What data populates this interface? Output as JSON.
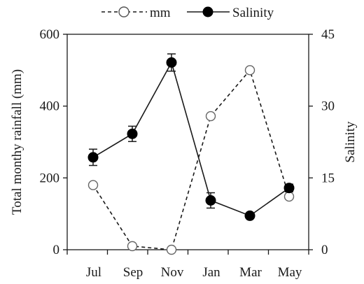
{
  "chart_data": {
    "type": "line",
    "categories": [
      "Jul",
      "Sep",
      "Nov",
      "Jan",
      "Mar",
      "May"
    ],
    "legend_position": "top",
    "grid": false,
    "left_axis": {
      "label": "Total monthy rainfall (mm)",
      "ylim": [
        0,
        600
      ],
      "ticks": [
        "0",
        "200",
        "400",
        "600"
      ]
    },
    "right_axis": {
      "label": "Salinity",
      "ylim": [
        0,
        45
      ],
      "ticks": [
        "0",
        "15",
        "30",
        "45"
      ]
    },
    "series": [
      {
        "name": "mm",
        "axis": "left",
        "style": "dashed",
        "marker": "open-circle",
        "values": [
          180,
          10,
          0,
          372,
          500,
          148
        ]
      },
      {
        "name": "Salinity",
        "axis": "right",
        "style": "solid",
        "marker": "filled-circle",
        "values": [
          19.3,
          24.2,
          39.1,
          10.3,
          7.1,
          12.9
        ],
        "error": [
          1.7,
          1.6,
          1.8,
          1.6,
          0.5,
          0.8
        ]
      }
    ]
  }
}
